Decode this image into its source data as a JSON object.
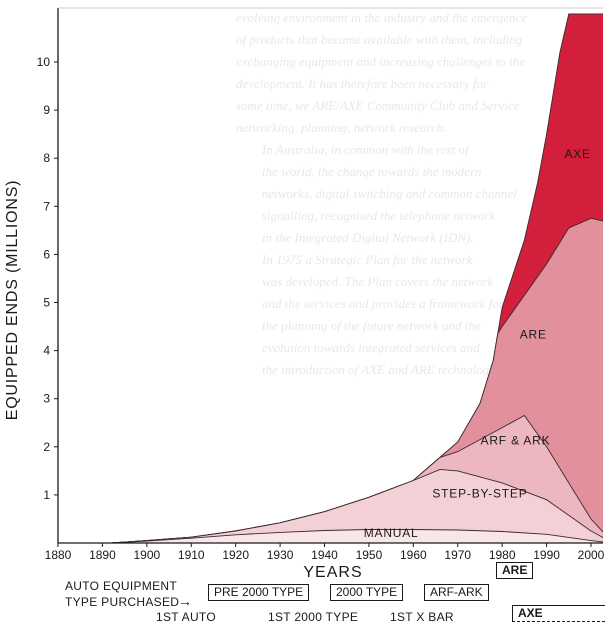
{
  "chart_data": {
    "type": "area",
    "xlabel": "YEARS",
    "ylabel": "EQUIPPED ENDS (MILLIONS)",
    "xlim": [
      1880,
      2005
    ],
    "ylim": [
      0,
      11
    ],
    "xticks": [
      "1880",
      "1890",
      "1900",
      "1910",
      "1920",
      "1930",
      "1940",
      "1950",
      "1960",
      "1970",
      "1980",
      "1990",
      "2000"
    ],
    "yticks": [
      "1",
      "2",
      "3",
      "4",
      "5",
      "6",
      "7",
      "8",
      "9",
      "10"
    ],
    "series": [
      {
        "name": "MANUAL",
        "color": "#f9e6e9",
        "points": [
          [
            1892,
            0
          ],
          [
            1900,
            0.04
          ],
          [
            1910,
            0.1
          ],
          [
            1920,
            0.17
          ],
          [
            1930,
            0.22
          ],
          [
            1940,
            0.26
          ],
          [
            1950,
            0.28
          ],
          [
            1960,
            0.28
          ],
          [
            1970,
            0.27
          ],
          [
            1980,
            0.24
          ],
          [
            1990,
            0.18
          ],
          [
            2000,
            0.05
          ],
          [
            2005,
            0
          ]
        ]
      },
      {
        "name": "STEP-BY-STEP",
        "color": "#f3d0d6",
        "points": [
          [
            1892,
            0
          ],
          [
            1900,
            0.05
          ],
          [
            1910,
            0.12
          ],
          [
            1920,
            0.25
          ],
          [
            1930,
            0.42
          ],
          [
            1940,
            0.65
          ],
          [
            1950,
            0.95
          ],
          [
            1960,
            1.3
          ],
          [
            1966,
            1.53
          ],
          [
            1970,
            1.5
          ],
          [
            1980,
            1.25
          ],
          [
            1990,
            0.9
          ],
          [
            2000,
            0.25
          ],
          [
            2005,
            0
          ]
        ]
      },
      {
        "name": "ARF & ARK",
        "color": "#ecb7c0",
        "points": [
          [
            1892,
            0
          ],
          [
            1900,
            0.05
          ],
          [
            1910,
            0.12
          ],
          [
            1920,
            0.25
          ],
          [
            1930,
            0.42
          ],
          [
            1940,
            0.65
          ],
          [
            1950,
            0.95
          ],
          [
            1960,
            1.3
          ],
          [
            1966,
            1.78
          ],
          [
            1970,
            1.9
          ],
          [
            1980,
            2.4
          ],
          [
            1985,
            2.65
          ],
          [
            1990,
            2.0
          ],
          [
            2000,
            0.5
          ],
          [
            2005,
            0
          ]
        ]
      },
      {
        "name": "ARE",
        "color": "#e2909c",
        "points": [
          [
            1892,
            0
          ],
          [
            1900,
            0.05
          ],
          [
            1910,
            0.12
          ],
          [
            1920,
            0.25
          ],
          [
            1930,
            0.42
          ],
          [
            1940,
            0.65
          ],
          [
            1950,
            0.95
          ],
          [
            1960,
            1.3
          ],
          [
            1966,
            1.78
          ],
          [
            1970,
            2.1
          ],
          [
            1975,
            2.9
          ],
          [
            1978,
            3.8
          ],
          [
            1979,
            4.35
          ],
          [
            1980,
            4.5
          ],
          [
            1990,
            5.8
          ],
          [
            1995,
            6.55
          ],
          [
            2000,
            6.75
          ],
          [
            2005,
            6.65
          ]
        ]
      },
      {
        "name": "AXE",
        "color": "#d11f3c",
        "points": [
          [
            1892,
            0
          ],
          [
            1900,
            0.05
          ],
          [
            1910,
            0.12
          ],
          [
            1920,
            0.25
          ],
          [
            1930,
            0.42
          ],
          [
            1940,
            0.65
          ],
          [
            1950,
            0.95
          ],
          [
            1960,
            1.3
          ],
          [
            1966,
            1.78
          ],
          [
            1970,
            2.1
          ],
          [
            1975,
            2.9
          ],
          [
            1978,
            3.8
          ],
          [
            1979,
            4.35
          ],
          [
            1980,
            4.9
          ],
          [
            1985,
            6.3
          ],
          [
            1988,
            7.5
          ],
          [
            1990,
            8.5
          ],
          [
            1993,
            10.2
          ],
          [
            1995,
            11.0
          ],
          [
            2005,
            11.0
          ]
        ]
      }
    ],
    "annotations": {
      "x_ticks_extra": "ARE",
      "auto_equipment_label_line1": "AUTO EQUIPMENT",
      "auto_equipment_label_line2": "TYPE PURCHASED",
      "arrow": "→",
      "purchase_boxes": [
        "PRE 2000 TYPE",
        "2000 TYPE",
        "ARF-ARK"
      ],
      "axe_box": "AXE",
      "milestones": [
        "1ST AUTO",
        "1ST 2000 TYPE",
        "1ST X BAR"
      ]
    },
    "grid": false,
    "legend": "inline labels"
  },
  "background_text": [
    "evolving environment in the industry and the emergence",
    "of products that became available with them, including",
    "exchanging equipment and increasing challenges to the",
    "development. It has therefore been necessary for",
    "some time, we ARE/AXE Community Club and Service",
    "networking, planning, network research.",
    "In Australia, in common with the rest of",
    "the world, the change towards the modern",
    "networks, digital switching and common channel",
    "signalling, recognised the telephone network",
    "in the Integrated Digital Network (IDN).",
    "In 1975 a Strategic Plan for the network",
    "was developed. The Plan covers the network",
    "and the services and provides a framework for",
    "the planning of the future network and the",
    "evolution towards integrated services and",
    "the introduction of AXE and ARE technology."
  ]
}
